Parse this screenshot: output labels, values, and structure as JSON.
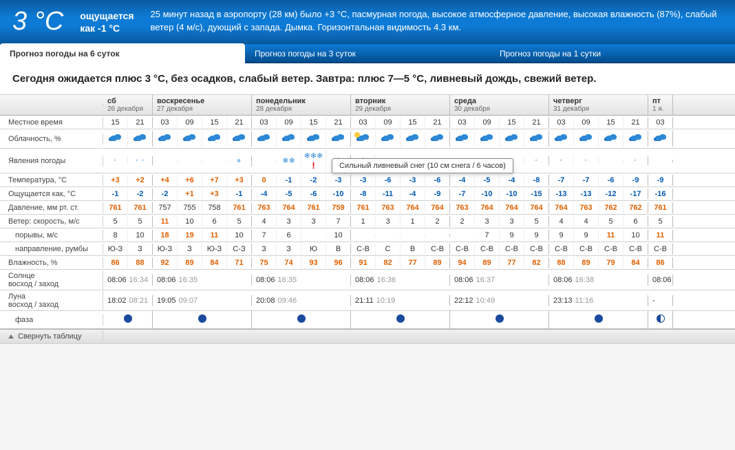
{
  "header": {
    "temp_now": "3 °C",
    "feels_line1": "ощущается",
    "feels_line2": "как -1 °C",
    "desc": "25 минут назад в аэропорту (28 км) было +3 °C, пасмурная погода, высокое атмосферное давление, высокая влажность (87%), слабый ветер (4 м/с), дующий с запада. Дымка. Горизонтальная видимость 4.3 км."
  },
  "tabs": {
    "t6": "Прогноз погоды на 6 суток",
    "t3": "Прогноз погоды на 3 суток",
    "t1": "Прогноз погоды на 1 сутки"
  },
  "summary": "Сегодня ожидается плюс 3 °C, без осадков, слабый ветер. Завтра: плюс 7—5 °C, ливневый дождь, свежий ветер.",
  "row_labels": {
    "local_time": "Местное время",
    "cloudiness": "Облачность, %",
    "phenomena": "Явления погоды",
    "temperature": "Температура, °C",
    "feels_like": "Ощущается как, °C",
    "pressure": "Давление, мм рт. ст.",
    "wind_speed": "Ветер: скорость, м/с",
    "wind_gust": "порывы, м/с",
    "wind_dir": "направление, румбы",
    "humidity": "Влажность, %",
    "sun": "Солнце\nвосход / заход",
    "moon": "Луна\nвосход / заход",
    "phase": "фаза",
    "collapse": "Свернуть таблицу"
  },
  "tooltip": "Сильный ливневый снег (10 см снега / 6 часов)",
  "days": [
    {
      "dow": "сб",
      "date": "26 декабря",
      "span": 2
    },
    {
      "dow": "воскресенье",
      "date": "27 декабря",
      "span": 4
    },
    {
      "dow": "понедельник",
      "date": "28 декабря",
      "span": 4
    },
    {
      "dow": "вторник",
      "date": "29 декабря",
      "span": 4
    },
    {
      "dow": "среда",
      "date": "30 декабря",
      "span": 4
    },
    {
      "dow": "четверг",
      "date": "31 декабря",
      "span": 4
    },
    {
      "dow": "пт",
      "date": "1 я.",
      "span": 1
    }
  ],
  "hours": [
    "15",
    "21",
    "03",
    "09",
    "15",
    "21",
    "03",
    "09",
    "15",
    "21",
    "03",
    "09",
    "15",
    "21",
    "03",
    "09",
    "15",
    "21",
    "03",
    "09",
    "15",
    "21",
    "03"
  ],
  "cloud_icons": [
    "c",
    "c",
    "c",
    "c",
    "c",
    "c",
    "c",
    "c",
    "c",
    "c",
    "s",
    "c",
    "c",
    "c",
    "c",
    "c",
    "c",
    "c",
    "c",
    "c",
    "c",
    "c",
    "c"
  ],
  "precip_icons": [
    ".",
    ":",
    "",
    "",
    "",
    "o",
    "",
    "**",
    "***",
    "*",
    "*",
    "",
    "",
    "",
    "",
    "",
    ".",
    ".",
    ".",
    ".",
    "",
    ".",
    ""
  ],
  "precip_warn_idx": 8,
  "temperature": [
    "+3",
    "+2",
    "+4",
    "+6",
    "+7",
    "+3",
    "0",
    "-1",
    "-2",
    "-3",
    "-3",
    "-6",
    "-3",
    "-6",
    "-4",
    "-5",
    "-4",
    "-8",
    "-7",
    "-7",
    "-6",
    "-9",
    "-9"
  ],
  "feels_like": [
    "-1",
    "-2",
    "-2",
    "+1",
    "+3",
    "-1",
    "-4",
    "-5",
    "-6",
    "-10",
    "-8",
    "-11",
    "-4",
    "-9",
    "-7",
    "-10",
    "-10",
    "-15",
    "-13",
    "-13",
    "-12",
    "-17",
    "-16"
  ],
  "pressure": [
    "761",
    "761",
    "757",
    "755",
    "758",
    "761",
    "763",
    "764",
    "761",
    "759",
    "761",
    "763",
    "764",
    "764",
    "763",
    "764",
    "764",
    "764",
    "764",
    "763",
    "762",
    "762",
    "761"
  ],
  "pressure_color": [
    "r",
    "r",
    "n",
    "n",
    "n",
    "r",
    "r",
    "r",
    "r",
    "r",
    "r",
    "r",
    "r",
    "r",
    "r",
    "r",
    "r",
    "r",
    "r",
    "r",
    "r",
    "r",
    "r"
  ],
  "wind_speed": [
    "5",
    "5",
    "11",
    "10",
    "6",
    "5",
    "4",
    "3",
    "3",
    "7",
    "1",
    "3",
    "1",
    "2",
    "2",
    "3",
    "3",
    "5",
    "4",
    "4",
    "5",
    "6",
    "5"
  ],
  "wind_speed_color": [
    "n",
    "n",
    "r",
    "n",
    "n",
    "n",
    "n",
    "n",
    "n",
    "n",
    "n",
    "n",
    "n",
    "n",
    "n",
    "n",
    "n",
    "n",
    "n",
    "n",
    "n",
    "n",
    "n"
  ],
  "wind_gust": [
    "8",
    "10",
    "18",
    "19",
    "11",
    "10",
    "7",
    "6",
    "",
    "10",
    "",
    "",
    "",
    "",
    "",
    "7",
    "9",
    "9",
    "9",
    "9",
    "11",
    "10",
    "11"
  ],
  "wind_gust_color": [
    "n",
    "n",
    "r",
    "r",
    "r",
    "n",
    "n",
    "n",
    "",
    "n",
    "",
    "",
    "",
    "",
    "",
    "n",
    "n",
    "n",
    "n",
    "n",
    "r",
    "n",
    "r"
  ],
  "wind_dir": [
    "Ю-З",
    "З",
    "Ю-З",
    "З",
    "Ю-З",
    "С-З",
    "З",
    "З",
    "Ю",
    "В",
    "С-В",
    "С",
    "В",
    "С-В",
    "С-В",
    "С-В",
    "С-В",
    "С-В",
    "С-В",
    "С-В",
    "С-В",
    "С-В",
    "С-В"
  ],
  "humidity": [
    "86",
    "88",
    "92",
    "89",
    "84",
    "71",
    "75",
    "74",
    "93",
    "96",
    "91",
    "82",
    "77",
    "89",
    "94",
    "89",
    "77",
    "82",
    "88",
    "89",
    "79",
    "84",
    "86"
  ],
  "humidity_color": [
    "r",
    "r",
    "r",
    "r",
    "r",
    "r",
    "r",
    "r",
    "r",
    "r",
    "r",
    "r",
    "r",
    "r",
    "r",
    "r",
    "r",
    "r",
    "r",
    "r",
    "r",
    "r",
    "r"
  ],
  "sun": [
    {
      "rise": "08:06",
      "set": "16:34"
    },
    {
      "rise": "08:06",
      "set": "16:35"
    },
    {
      "rise": "08:06",
      "set": "16:35"
    },
    {
      "rise": "08:06",
      "set": "16:36"
    },
    {
      "rise": "08:06",
      "set": "16:37"
    },
    {
      "rise": "08:06",
      "set": "16:38"
    },
    {
      "rise": "08:06",
      "set": ""
    }
  ],
  "moon": [
    {
      "rise": "18:02",
      "set": "08:21"
    },
    {
      "rise": "19:05",
      "set": "09:07"
    },
    {
      "rise": "20:08",
      "set": "09:46"
    },
    {
      "rise": "21:11",
      "set": "10:19"
    },
    {
      "rise": "22:12",
      "set": "10:49"
    },
    {
      "rise": "23:13",
      "set": "11:16"
    },
    {
      "rise": "-",
      "set": ""
    }
  ],
  "phase": [
    "full",
    "full",
    "full",
    "full",
    "full",
    "full",
    "half"
  ],
  "colors": {
    "header_bg_top": "#0a5aa0",
    "header_bg_mid": "#0d7bd6",
    "plus": "#e06000",
    "minus": "#0058b0",
    "grid_border": "#d0d0d0"
  }
}
